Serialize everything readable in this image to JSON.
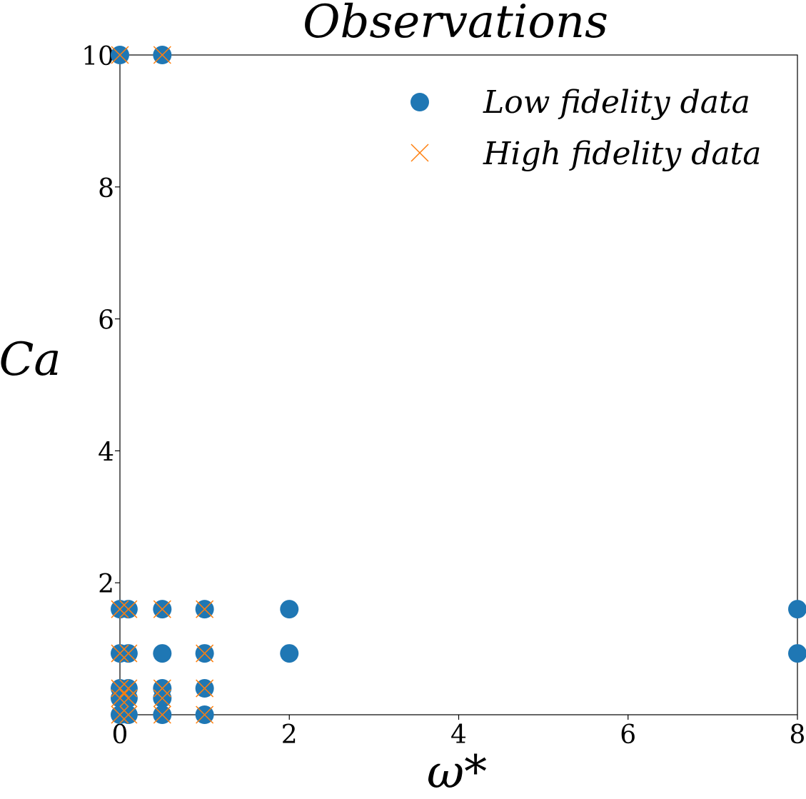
{
  "colors": {
    "low_fidelity": "#1f77b4",
    "high_fidelity": "#ff7f0e",
    "axes": "#000000",
    "background": "#ffffff"
  },
  "chart_data": {
    "type": "scatter",
    "title": "Observations",
    "xlabel": "ω*",
    "ylabel": "Ca",
    "xlim": [
      0,
      8
    ],
    "ylim": [
      0,
      10
    ],
    "xticks": [
      "0",
      "2",
      "4",
      "6",
      "8"
    ],
    "yticks": [
      "2",
      "4",
      "6",
      "8",
      "10"
    ],
    "grid": false,
    "legend_position": "top-right",
    "series": [
      {
        "name": "Low fidelity data",
        "marker": "circle",
        "color": "#1f77b4",
        "points": [
          [
            0.0,
            10.0
          ],
          [
            0.5,
            10.0
          ],
          [
            0.0,
            1.6
          ],
          [
            0.1,
            1.6
          ],
          [
            0.5,
            1.6
          ],
          [
            1.0,
            1.6
          ],
          [
            2.0,
            1.6
          ],
          [
            8.0,
            1.6
          ],
          [
            0.0,
            0.93
          ],
          [
            0.1,
            0.93
          ],
          [
            0.5,
            0.93
          ],
          [
            1.0,
            0.93
          ],
          [
            2.0,
            0.93
          ],
          [
            8.0,
            0.93
          ],
          [
            0.0,
            0.4
          ],
          [
            0.1,
            0.4
          ],
          [
            0.5,
            0.4
          ],
          [
            1.0,
            0.4
          ],
          [
            0.0,
            0.25
          ],
          [
            0.1,
            0.25
          ],
          [
            0.5,
            0.25
          ],
          [
            0.0,
            0.0
          ],
          [
            0.1,
            0.0
          ],
          [
            0.5,
            0.0
          ],
          [
            1.0,
            0.0
          ]
        ]
      },
      {
        "name": "High fidelity data",
        "marker": "x",
        "color": "#ff7f0e",
        "points": [
          [
            0.0,
            10.0
          ],
          [
            0.5,
            10.0
          ],
          [
            0.0,
            1.6
          ],
          [
            0.1,
            1.6
          ],
          [
            0.5,
            1.6
          ],
          [
            1.0,
            1.6
          ],
          [
            0.0,
            0.93
          ],
          [
            0.1,
            0.93
          ],
          [
            1.0,
            0.93
          ],
          [
            0.0,
            0.4
          ],
          [
            0.1,
            0.4
          ],
          [
            0.5,
            0.4
          ],
          [
            1.0,
            0.4
          ],
          [
            0.0,
            0.25
          ],
          [
            0.1,
            0.25
          ],
          [
            0.5,
            0.25
          ],
          [
            0.0,
            0.0
          ],
          [
            0.1,
            0.0
          ],
          [
            0.5,
            0.0
          ],
          [
            1.0,
            0.0
          ]
        ]
      }
    ]
  }
}
